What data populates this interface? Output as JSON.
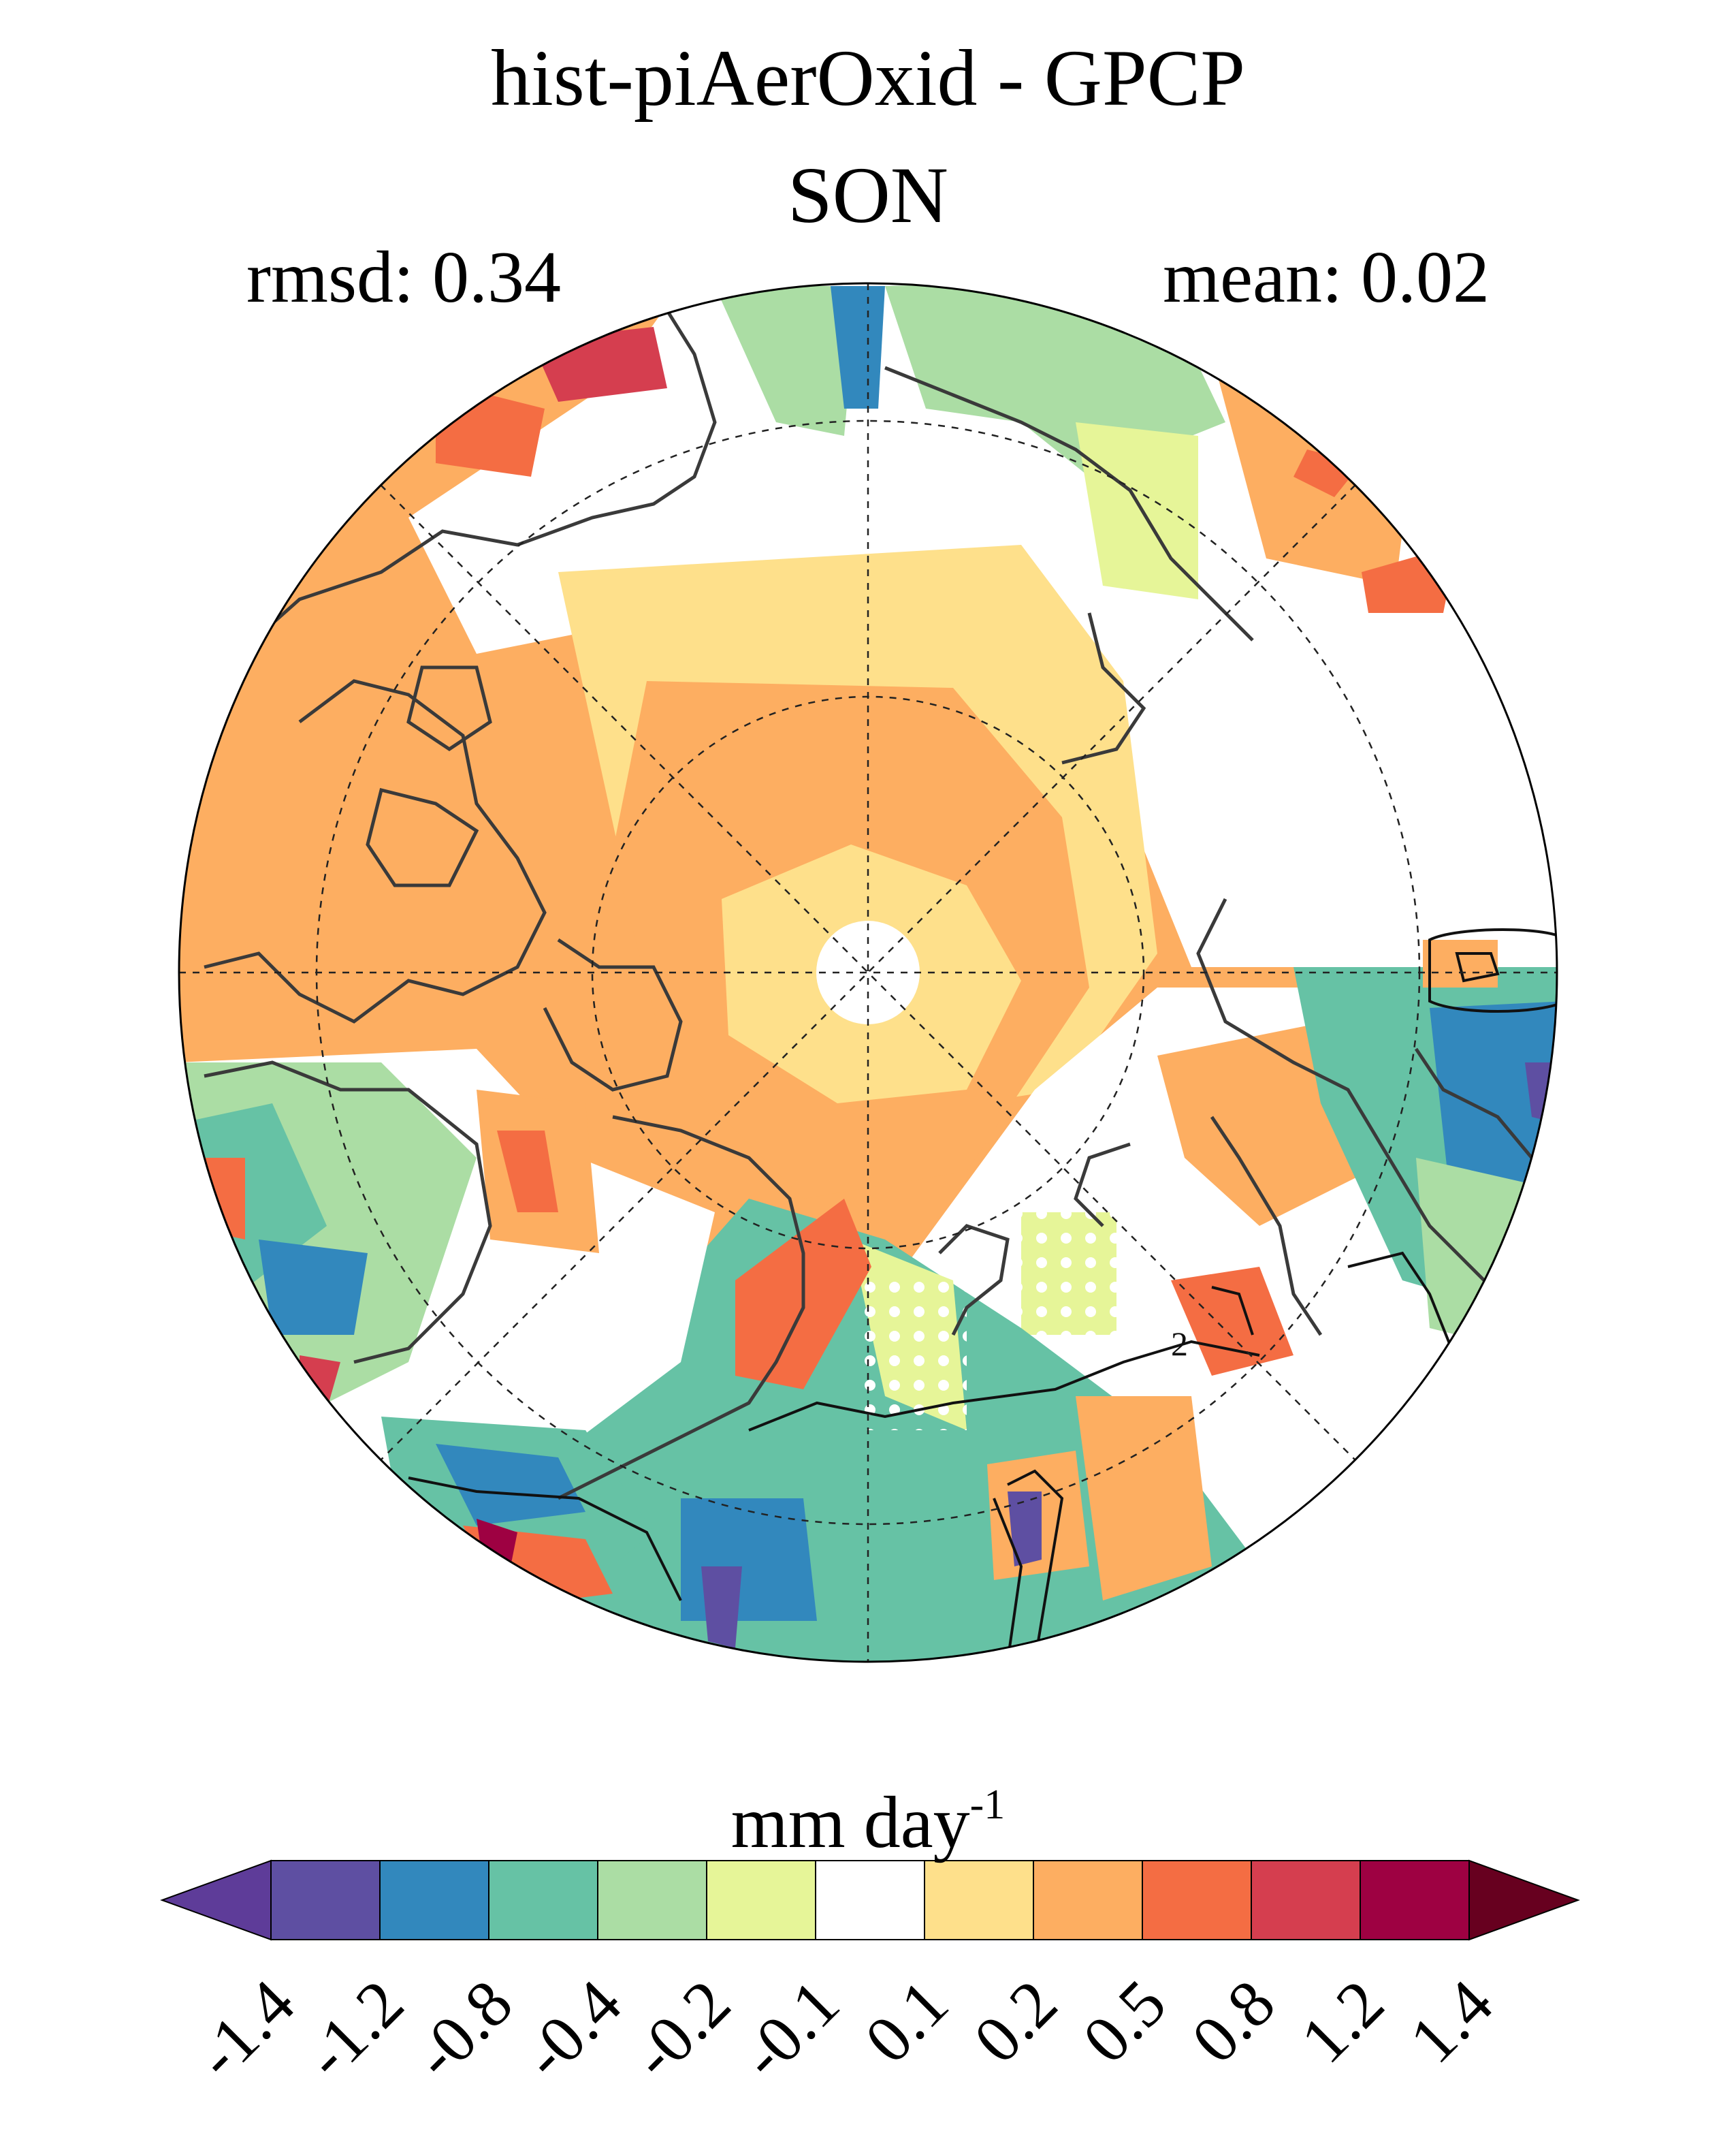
{
  "title": "hist-piAerOxid - GPCP",
  "season": "SON",
  "stats": {
    "rmsd_label": "rmsd: 0.34",
    "mean_label": "mean: 0.02"
  },
  "units": {
    "base": "mm day",
    "exponent": "-1"
  },
  "colorbar": {
    "levels": [
      "-1.4",
      "-1.2",
      "-0.8",
      "-0.4",
      "-0.2",
      "-0.1",
      "0.1",
      "0.2",
      "0.5",
      "0.8",
      "1.2",
      "1.4"
    ],
    "colors": [
      "#5e3c99",
      "#5e4fa2",
      "#3288bd",
      "#66c2a5",
      "#abdda4",
      "#e6f598",
      "#ffffff",
      "#fee08b",
      "#fdae61",
      "#f46d43",
      "#d53e4f",
      "#9e0142",
      "#67001f"
    ],
    "under_color": "#5e3c99",
    "over_color": "#67001f"
  },
  "map": {
    "projection": "north polar stereographic",
    "dominant_colors": {
      "ocean_arctic": "#fdae61",
      "pole_center": "#fee08b",
      "no_change": "#ffffff",
      "coast": "#333333"
    }
  }
}
